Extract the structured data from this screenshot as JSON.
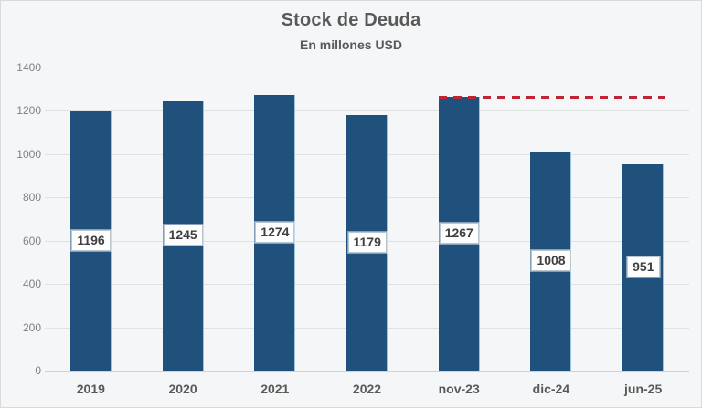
{
  "chart": {
    "title": "Stock de Deuda",
    "subtitle": "En millones USD"
  },
  "chart_data": {
    "type": "bar",
    "title": "Stock de Deuda",
    "subtitle": "En millones USD",
    "categories": [
      "2019",
      "2020",
      "2021",
      "2022",
      "nov-23",
      "dic-24",
      "jun-25"
    ],
    "values": [
      1196,
      1245,
      1274,
      1179,
      1267,
      1008,
      951
    ],
    "data_labels": [
      "1196",
      "1245",
      "1274",
      "1179",
      "1267",
      "1008",
      "951"
    ],
    "xlabel": "",
    "ylabel": "",
    "ylim": [
      0,
      1400
    ],
    "yticks": [
      0,
      200,
      400,
      600,
      800,
      1000,
      1200,
      1400
    ],
    "grid": true,
    "legend": false,
    "bar_color": "#1f517c",
    "reference_line": {
      "value": 1267,
      "style": "dashed",
      "color": "#c02434",
      "from_category": "nov-23",
      "to_category": "jun-25"
    }
  },
  "colors": {
    "background": "#f5f6f7",
    "gridline": "#dfe1e2",
    "axis_line": "#cfd1d3",
    "bar": "#1f517c",
    "title_text": "#595959",
    "axis_text": "#808080",
    "category_text": "#595959",
    "label_box_bg": "#fdfdfd",
    "label_box_border": "#b9c6ce",
    "reference_red": "#c02434"
  }
}
